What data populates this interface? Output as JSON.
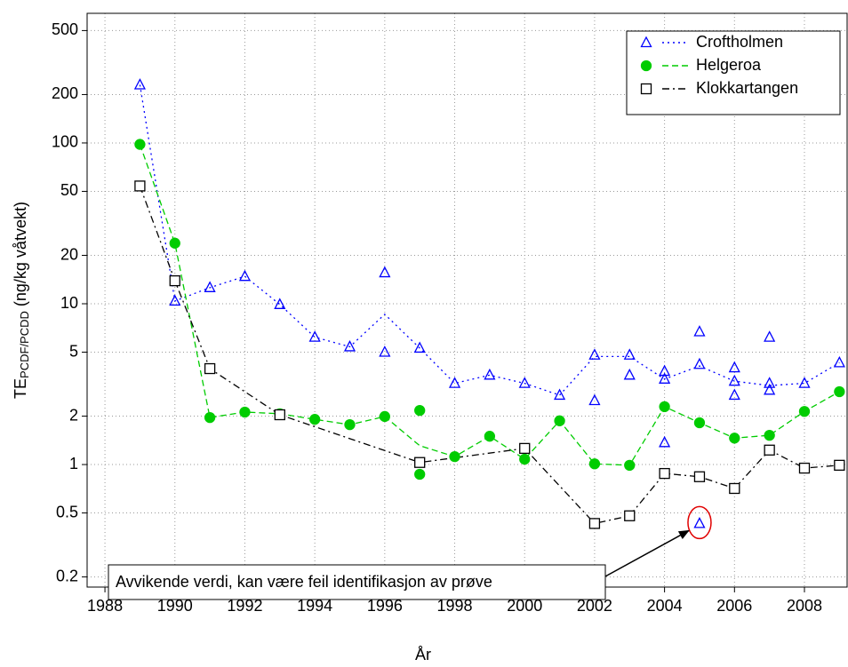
{
  "chart_data": {
    "type": "line",
    "xlabel": "År",
    "ylabel": {
      "main": "TE",
      "subscript": "PCDF/PCDD",
      "unit": "(ng/kg våtvekt)"
    },
    "xlim": [
      1987.49,
      2009.22
    ],
    "ylim": [
      0.173,
      640
    ],
    "log_y": true,
    "grid": true,
    "legend": "upper right",
    "xticks": [
      1988,
      1990,
      1992,
      1994,
      1996,
      1998,
      2000,
      2002,
      2004,
      2006,
      2008
    ],
    "yticks": [
      0.2,
      0.5,
      1,
      2,
      5,
      10,
      20,
      50,
      100,
      200,
      500
    ],
    "series": [
      {
        "name": "Croftholmen",
        "color": "#0000ff",
        "marker": "triangle",
        "line_style": "dotted",
        "x": [
          1989,
          1990,
          1991,
          1992,
          1993,
          1994,
          1995,
          1996,
          1996,
          1997,
          1998,
          1999,
          2000,
          2001,
          2002,
          2002,
          2003,
          2003,
          2004,
          2004,
          2004,
          2005,
          2005,
          2005,
          2006,
          2006,
          2006,
          2007,
          2007,
          2007,
          2008,
          2009
        ],
        "values": [
          230,
          10.4,
          12.6,
          14.8,
          9.9,
          6.2,
          5.4,
          15.6,
          5.0,
          5.3,
          3.2,
          3.6,
          3.2,
          2.7,
          4.8,
          2.5,
          4.8,
          3.6,
          3.8,
          3.4,
          1.37,
          6.7,
          4.2,
          0.43,
          4.0,
          3.3,
          2.7,
          6.2,
          3.2,
          2.9,
          3.2,
          4.3
        ],
        "trend_x": [
          1989,
          1990,
          1991,
          1992,
          1993,
          1994,
          1995,
          1996,
          1997,
          1998,
          1999,
          2000,
          2001,
          2002,
          2003,
          2004,
          2005,
          2006,
          2007,
          2008,
          2009
        ],
        "trend_values": [
          230,
          10.4,
          12.6,
          14.8,
          9.9,
          6.2,
          5.4,
          8.6,
          5.3,
          3.2,
          3.6,
          3.2,
          2.7,
          4.7,
          4.7,
          3.4,
          4.1,
          3.3,
          3.1,
          3.2,
          4.3
        ]
      },
      {
        "name": "Helgeroa",
        "color": "#00cc00",
        "marker": "circle",
        "line_style": "dashed",
        "x": [
          1989,
          1990,
          1991,
          1992,
          1993,
          1994,
          1995,
          1996,
          1997,
          1997,
          1998,
          1999,
          2000,
          2001,
          2002,
          2003,
          2004,
          2005,
          2006,
          2007,
          2008,
          2009
        ],
        "values": [
          98,
          23.8,
          1.96,
          2.12,
          2.07,
          1.91,
          1.77,
          1.99,
          2.17,
          0.87,
          1.12,
          1.5,
          1.08,
          1.87,
          1.01,
          0.99,
          2.29,
          1.82,
          1.46,
          1.52,
          2.14,
          2.84
        ],
        "trend_x": [
          1989,
          1990,
          1991,
          1992,
          1993,
          1994,
          1995,
          1996,
          1997,
          1998,
          1999,
          2000,
          2001,
          2002,
          2003,
          2004,
          2005,
          2006,
          2007,
          2008,
          2009
        ],
        "trend_values": [
          98,
          23.8,
          1.96,
          2.12,
          2.07,
          1.91,
          1.77,
          1.99,
          1.31,
          1.12,
          1.5,
          1.08,
          1.87,
          1.01,
          0.99,
          2.29,
          1.82,
          1.46,
          1.52,
          2.14,
          2.84
        ]
      },
      {
        "name": "Klokkartangen",
        "color": "#000000",
        "marker": "square",
        "line_style": "dashdot",
        "x": [
          1989,
          1990,
          1991,
          1993,
          1997,
          2000,
          2002,
          2003,
          2004,
          2005,
          2006,
          2007,
          2008,
          2009
        ],
        "values": [
          54,
          13.9,
          3.95,
          2.04,
          1.03,
          1.26,
          0.43,
          0.48,
          0.88,
          0.84,
          0.71,
          1.23,
          0.95,
          0.99
        ]
      }
    ],
    "annotation": {
      "text": "Avvikende verdi, kan være feil identifikasjon av prøve"
    }
  }
}
